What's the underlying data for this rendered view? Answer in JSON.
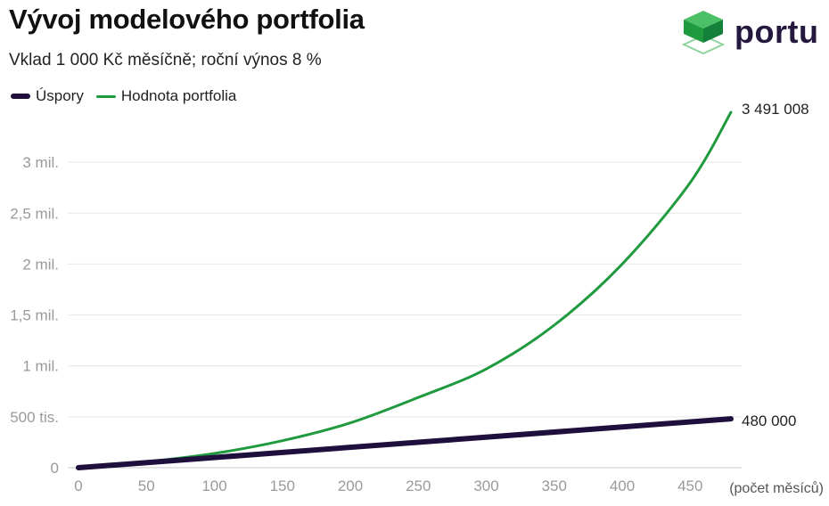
{
  "header": {
    "title": "Vývoj modelového portfolia",
    "subtitle": "Vklad 1 000 Kč měsíčně; roční výnos 8 %"
  },
  "logo": {
    "text": "portu",
    "icon": "cube-logo-icon",
    "color": "#22a043"
  },
  "legend": [
    {
      "label": "Úspory",
      "color": "#1e0f3c"
    },
    {
      "label": "Hodnota portfolia",
      "color": "#1f9a3e"
    }
  ],
  "chart_data": {
    "type": "line",
    "x_unit_label": "(počet měsíců)",
    "x_range": [
      0,
      480
    ],
    "ylim": [
      0,
      3500000
    ],
    "x_ticks": [
      0,
      50,
      100,
      150,
      200,
      250,
      300,
      350,
      400,
      450
    ],
    "x_tick_labels": [
      "0",
      "50",
      "100",
      "150",
      "200",
      "250",
      "300",
      "350",
      "400",
      "450"
    ],
    "y_ticks": [
      0,
      500000,
      1000000,
      1500000,
      2000000,
      2500000,
      3000000
    ],
    "y_tick_labels": [
      "0",
      "500 tis.",
      "1 mil.",
      "1,5 mil.",
      "2 mil.",
      "2,5 mil.",
      "3 mil."
    ],
    "grid": true,
    "legend_position": "top-left",
    "series": [
      {
        "name": "Úspory",
        "color": "#1e0f3c",
        "x": [
          0,
          480
        ],
        "values": [
          0,
          480000
        ],
        "end_label": "480 000"
      },
      {
        "name": "Hodnota portfolia",
        "color": "#1f9a3e",
        "x": [
          0,
          50,
          100,
          150,
          200,
          250,
          300,
          350,
          400,
          450,
          480
        ],
        "values": [
          0,
          58000,
          140000,
          265000,
          440000,
          690000,
          970000,
          1400000,
          2000000,
          2800000,
          3491008
        ],
        "end_label": "3 491 008"
      }
    ]
  }
}
